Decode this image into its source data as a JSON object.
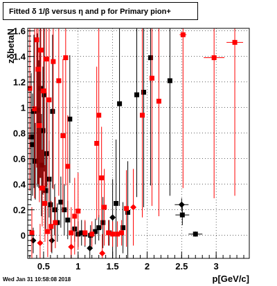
{
  "title": "Fitted δ 1/β versus η and p for Primary pion+",
  "footer": "Wed Jan 31 10:58:08 2018",
  "colors": {
    "black_series": "#000000",
    "red_series": "#ff0000",
    "grid": "#000000"
  },
  "chart_data": {
    "type": "scatter",
    "xlabel": "p[GeV/c]",
    "ylabel": "z_{δbetaN}",
    "xlim": [
      0.27,
      3.48
    ],
    "ylim": [
      -0.18,
      1.62
    ],
    "xticks": [
      0.5,
      1,
      1.5,
      2,
      2.5,
      3
    ],
    "xtick_labels": [
      "0.5",
      "1",
      "1.5",
      "2",
      "2.5",
      "3"
    ],
    "yticks": [
      0,
      0.2,
      0.4,
      0.6,
      0.8,
      1,
      1.2,
      1.4,
      1.6
    ],
    "ytick_labels": [
      "0",
      "0.2",
      "0.4",
      "0.6",
      "0.8",
      "1",
      "1.2",
      "1.4",
      "1.6"
    ],
    "grid": true,
    "series": [
      {
        "color": "#000000",
        "points": [
          {
            "x": 0.32,
            "y": 0.77,
            "ey": 0.5,
            "m": "s"
          },
          {
            "x": 0.34,
            "y": 0.71,
            "ey": 0.4,
            "m": "s"
          },
          {
            "x": 0.36,
            "y": 0.97,
            "ey": 0.6,
            "m": "s"
          },
          {
            "x": 0.38,
            "y": 0.58,
            "ey": 0.3,
            "m": "s"
          },
          {
            "x": 0.41,
            "y": 0.98,
            "ey": 0.6,
            "m": "s"
          },
          {
            "x": 0.43,
            "y": 0.87,
            "ey": 0.5,
            "m": "s"
          },
          {
            "x": 0.45,
            "y": 1.15,
            "ey": 0.7,
            "m": "s"
          },
          {
            "x": 0.47,
            "y": 0.55,
            "ey": 0.4,
            "m": "s"
          },
          {
            "x": 0.49,
            "y": 0.82,
            "ey": 0.5,
            "m": "s"
          },
          {
            "x": 0.51,
            "y": 1.1,
            "ey": 0.6,
            "m": "s"
          },
          {
            "x": 0.53,
            "y": 0.35,
            "ey": 0.3,
            "m": "s"
          },
          {
            "x": 0.55,
            "y": 0.64,
            "ey": 0.4,
            "m": "s"
          },
          {
            "x": 0.58,
            "y": 0.44,
            "ey": 0.3,
            "m": "s"
          },
          {
            "x": 0.6,
            "y": 0.24,
            "ey": 0.2,
            "m": "s"
          },
          {
            "x": 0.63,
            "y": 0.97,
            "ey": 0.6,
            "m": "s"
          },
          {
            "x": 0.66,
            "y": 0.2,
            "ey": 0.2,
            "m": "s"
          },
          {
            "x": 0.7,
            "y": 0.1,
            "ey": 0.15,
            "m": "s"
          },
          {
            "x": 0.75,
            "y": 0.26,
            "ey": 0.2,
            "m": "s"
          },
          {
            "x": 0.8,
            "y": 0.2,
            "ey": 0.2,
            "m": "s"
          },
          {
            "x": 0.85,
            "y": 0.12,
            "ey": 0.15,
            "m": "s"
          },
          {
            "x": 0.88,
            "y": 0.91,
            "ey": 0.5,
            "m": "s"
          },
          {
            "x": 0.95,
            "y": 0.05,
            "ey": 0.1,
            "m": "s"
          },
          {
            "x": 1.0,
            "y": 0.01,
            "ey": 0.1,
            "m": "s"
          },
          {
            "x": 1.05,
            "y": 0.02,
            "ey": 0.1,
            "m": "s"
          },
          {
            "x": 1.1,
            "y": 0.01,
            "ey": 0.1,
            "m": "s"
          },
          {
            "x": 1.18,
            "y": 0.0,
            "ey": 0.08,
            "m": "s"
          },
          {
            "x": 1.25,
            "y": 0.03,
            "ey": 0.1,
            "m": "s"
          },
          {
            "x": 1.3,
            "y": 0.06,
            "ey": 0.1,
            "m": "s"
          },
          {
            "x": 1.36,
            "y": 0.1,
            "ey": 0.2,
            "m": "s"
          },
          {
            "x": 1.45,
            "y": 0.02,
            "ey": 0.1,
            "m": "s"
          },
          {
            "x": 1.5,
            "y": 0.14,
            "ey": 0.3,
            "m": "d"
          },
          {
            "x": 1.55,
            "y": 0.25,
            "ey": 0.5,
            "m": "s"
          },
          {
            "x": 1.6,
            "y": 1.03,
            "ey": 0.8,
            "m": "s"
          },
          {
            "x": 1.65,
            "y": 0.06,
            "ey": 0.2,
            "m": "s"
          },
          {
            "x": 1.72,
            "y": 0.18,
            "ey": 0.4,
            "m": "s"
          },
          {
            "x": 1.85,
            "y": 1.1,
            "ey": 0.8,
            "m": "s"
          },
          {
            "x": 1.95,
            "y": 1.12,
            "ey": 0.9,
            "m": "s"
          },
          {
            "x": 2.05,
            "y": 1.39,
            "ey": 1.0,
            "m": "s"
          },
          {
            "x": 2.33,
            "y": 1.21,
            "ey": 0.9,
            "m": "s"
          },
          {
            "x": 2.5,
            "y": 0.24,
            "ey": 0.05,
            "ex": 0.1,
            "m": "d"
          },
          {
            "x": 2.51,
            "y": 0.16,
            "ey": 0.08,
            "ex": 0.1,
            "m": "s"
          },
          {
            "x": 2.7,
            "y": 0.01,
            "ey": 0.02,
            "ex": 0.1,
            "m": "s"
          },
          {
            "x": 0.35,
            "y": -0.04,
            "ey": 0.1,
            "m": "d"
          },
          {
            "x": 0.62,
            "y": -0.04,
            "ey": 0.1,
            "m": "d"
          },
          {
            "x": 1.17,
            "y": -0.1,
            "ey": 0.1,
            "m": "d"
          }
        ]
      },
      {
        "color": "#ff0000",
        "points": [
          {
            "x": 0.3,
            "y": 1.15,
            "ey": 0.8,
            "m": "s"
          },
          {
            "x": 0.33,
            "y": 0.02,
            "ey": 0.2,
            "m": "s"
          },
          {
            "x": 0.37,
            "y": 0.99,
            "ey": 0.7,
            "m": "s"
          },
          {
            "x": 0.4,
            "y": 1.53,
            "ey": 1.0,
            "m": "s"
          },
          {
            "x": 0.42,
            "y": 1.3,
            "ey": 0.9,
            "m": "s"
          },
          {
            "x": 0.44,
            "y": 0.86,
            "ey": 0.6,
            "m": "s"
          },
          {
            "x": 0.46,
            "y": 1.45,
            "ey": 1.0,
            "m": "s"
          },
          {
            "x": 0.48,
            "y": 0.37,
            "ey": 0.3,
            "m": "s"
          },
          {
            "x": 0.5,
            "y": 1.13,
            "ey": 0.8,
            "m": "s"
          },
          {
            "x": 0.52,
            "y": 0.25,
            "ey": 0.3,
            "m": "s"
          },
          {
            "x": 0.54,
            "y": 1.38,
            "ey": 1.0,
            "m": "s"
          },
          {
            "x": 0.56,
            "y": 0.03,
            "ey": 0.2,
            "m": "s"
          },
          {
            "x": 0.58,
            "y": 1.06,
            "ey": 0.8,
            "m": "s"
          },
          {
            "x": 0.61,
            "y": 0.07,
            "ey": 0.2,
            "m": "s"
          },
          {
            "x": 0.64,
            "y": 1.36,
            "ey": 1.0,
            "m": "s"
          },
          {
            "x": 0.67,
            "y": 0.1,
            "ey": 0.2,
            "m": "s"
          },
          {
            "x": 0.72,
            "y": 1.21,
            "ey": 0.9,
            "m": "s"
          },
          {
            "x": 0.78,
            "y": 0.78,
            "ey": 0.6,
            "m": "s"
          },
          {
            "x": 0.82,
            "y": 1.39,
            "ey": 1.0,
            "m": "s"
          },
          {
            "x": 0.85,
            "y": 0.54,
            "ey": 0.4,
            "m": "s"
          },
          {
            "x": 0.9,
            "y": 0.02,
            "ey": 0.2,
            "m": "s"
          },
          {
            "x": 0.95,
            "y": 0.15,
            "ey": 0.3,
            "m": "s"
          },
          {
            "x": 1.0,
            "y": 0.19,
            "ey": 0.3,
            "m": "s"
          },
          {
            "x": 1.1,
            "y": 0.02,
            "ey": 0.1,
            "m": "s"
          },
          {
            "x": 1.2,
            "y": 0.01,
            "ey": 0.1,
            "m": "s"
          },
          {
            "x": 1.27,
            "y": 0.72,
            "ey": 0.6,
            "m": "s"
          },
          {
            "x": 1.3,
            "y": 0.94,
            "ey": 0.8,
            "m": "s"
          },
          {
            "x": 1.34,
            "y": 0.45,
            "ey": 0.4,
            "m": "s"
          },
          {
            "x": 1.38,
            "y": 0.22,
            "ey": 0.3,
            "m": "s"
          },
          {
            "x": 1.44,
            "y": 0.02,
            "ey": 0.1,
            "m": "s"
          },
          {
            "x": 1.5,
            "y": 0.01,
            "ey": 0.1,
            "m": "s"
          },
          {
            "x": 1.57,
            "y": 0.01,
            "ey": 0.1,
            "m": "s"
          },
          {
            "x": 1.63,
            "y": 0.02,
            "ey": 0.1,
            "m": "s"
          },
          {
            "x": 1.7,
            "y": 0.21,
            "ey": 0.3,
            "m": "s"
          },
          {
            "x": 1.8,
            "y": 0.22,
            "ey": 0.3,
            "m": "d"
          },
          {
            "x": 1.93,
            "y": 0.94,
            "ey": 0.8,
            "m": "s"
          },
          {
            "x": 2.07,
            "y": 1.23,
            "ey": 1.0,
            "m": "s"
          },
          {
            "x": 2.17,
            "y": 1.05,
            "ey": 0.9,
            "m": "s"
          },
          {
            "x": 2.52,
            "y": 1.57,
            "ey": 1.2,
            "ex": 0.05,
            "m": "s"
          },
          {
            "x": 2.97,
            "y": 1.39,
            "ey": 1.1,
            "ex": 0.15,
            "m": "s"
          },
          {
            "x": 3.27,
            "y": 1.51,
            "ey": 1.2,
            "ex": 0.12,
            "m": "s"
          },
          {
            "x": 0.45,
            "y": -0.06,
            "ey": 0.15,
            "m": "d"
          },
          {
            "x": 0.9,
            "y": -0.09,
            "ey": 0.15,
            "m": "d"
          },
          {
            "x": 1.35,
            "y": -0.14,
            "ey": 0.15,
            "m": "d"
          }
        ]
      }
    ]
  }
}
